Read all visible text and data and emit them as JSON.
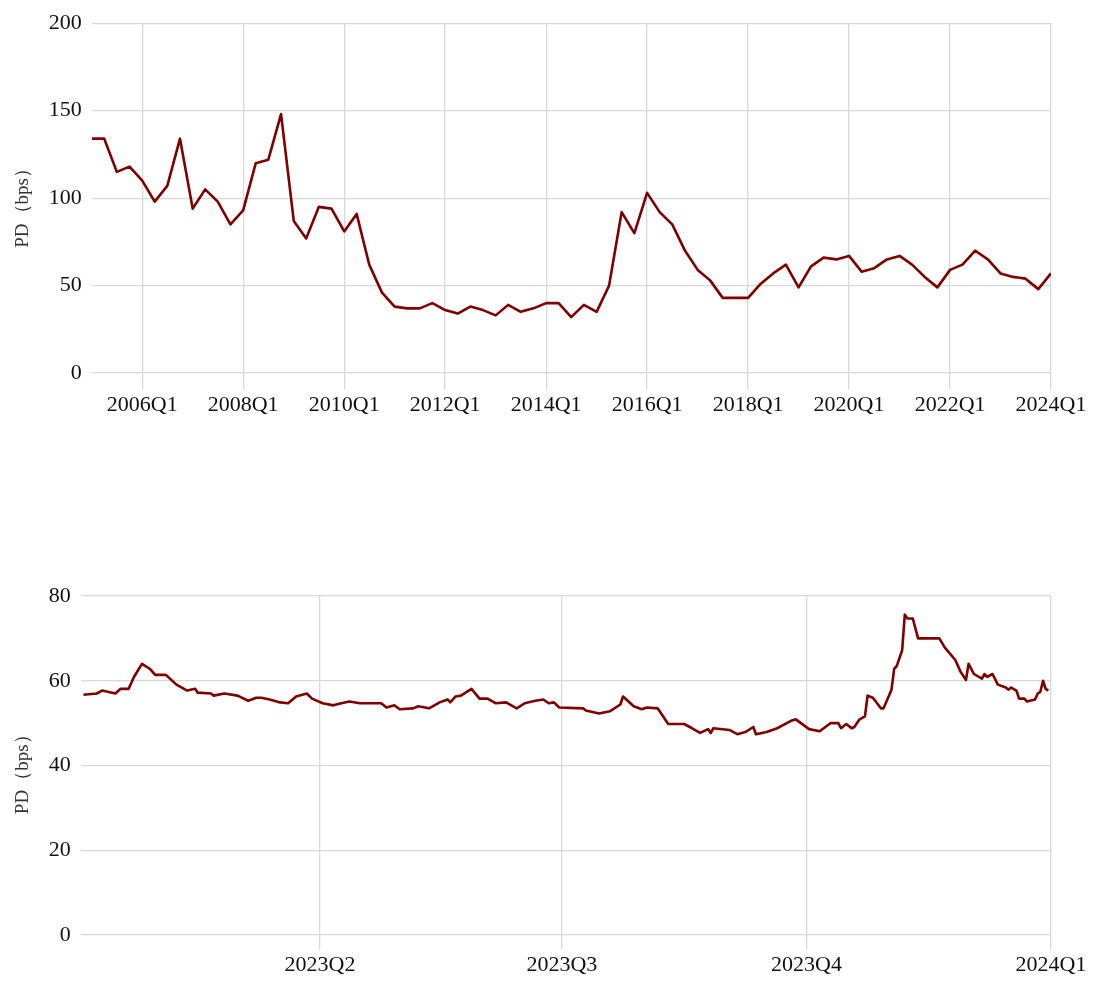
{
  "chart_data": [
    {
      "type": "line",
      "ylabel": "PD（bps）",
      "color": "#800000",
      "marker": "none",
      "grid": true,
      "x": [
        "2005-01-01",
        "2005-04-01",
        "2005-07-01",
        "2005-10-01",
        "2006-01-01",
        "2006-04-01",
        "2006-07-01",
        "2006-10-01",
        "2007-01-01",
        "2007-04-01",
        "2007-07-01",
        "2007-10-01",
        "2008-01-01",
        "2008-04-01",
        "2008-07-01",
        "2008-10-01",
        "2009-01-01",
        "2009-04-01",
        "2009-07-01",
        "2009-10-01",
        "2010-01-01",
        "2010-04-01",
        "2010-07-01",
        "2010-10-01",
        "2011-01-01",
        "2011-04-01",
        "2011-07-01",
        "2011-10-01",
        "2012-01-01",
        "2012-04-01",
        "2012-07-01",
        "2012-10-01",
        "2013-01-01",
        "2013-04-01",
        "2013-07-01",
        "2013-10-01",
        "2014-01-01",
        "2014-04-01",
        "2014-07-01",
        "2014-10-01",
        "2015-01-01",
        "2015-04-01",
        "2015-07-01",
        "2015-10-01",
        "2016-01-01",
        "2016-04-01",
        "2016-07-01",
        "2016-10-01",
        "2017-01-01",
        "2017-04-01",
        "2017-07-01",
        "2017-10-01",
        "2018-01-01",
        "2018-04-01",
        "2018-07-01",
        "2018-10-01",
        "2019-01-01",
        "2019-04-01",
        "2019-07-01",
        "2019-10-01",
        "2020-01-01",
        "2020-04-01",
        "2020-07-01",
        "2020-10-01",
        "2021-01-01",
        "2021-04-01",
        "2021-07-01",
        "2021-10-01",
        "2022-01-01",
        "2022-04-01",
        "2022-07-01",
        "2022-10-01",
        "2023-01-01",
        "2023-04-01",
        "2023-07-01",
        "2023-10-01",
        "2024-01-01"
      ],
      "values": [
        134,
        134,
        115,
        118,
        110,
        98,
        107,
        134,
        94,
        105,
        98,
        85,
        93,
        120,
        122,
        148,
        87,
        77,
        95,
        94,
        81,
        91,
        62,
        46,
        38,
        37,
        37,
        40,
        36,
        34,
        38,
        36,
        33,
        39,
        35,
        37,
        40,
        40,
        32,
        39,
        35,
        50,
        92,
        80,
        103,
        92,
        85,
        70,
        59,
        53,
        43,
        43,
        43,
        51,
        57,
        62,
        49,
        61,
        66,
        65,
        67,
        58,
        60,
        65,
        67,
        62,
        55,
        49,
        59,
        62,
        70,
        65,
        57,
        55,
        54,
        48,
        57
      ],
      "xlim": [
        "2005-01-01",
        "2024-01-01"
      ],
      "ylim": [
        -6,
        200
      ],
      "yticks": [
        0,
        50,
        100,
        150,
        200
      ],
      "xticks": [
        {
          "value": "2006-01-01",
          "label": "2006Q1"
        },
        {
          "value": "2008-01-01",
          "label": "2008Q1"
        },
        {
          "value": "2010-01-01",
          "label": "2010Q1"
        },
        {
          "value": "2012-01-01",
          "label": "2012Q1"
        },
        {
          "value": "2014-01-01",
          "label": "2014Q1"
        },
        {
          "value": "2016-01-01",
          "label": "2016Q1"
        },
        {
          "value": "2018-01-01",
          "label": "2018Q1"
        },
        {
          "value": "2020-01-01",
          "label": "2020Q1"
        },
        {
          "value": "2022-01-01",
          "label": "2022Q1"
        },
        {
          "value": "2024-01-01",
          "label": "2024Q1"
        }
      ]
    },
    {
      "type": "line",
      "ylabel": "PD（bps）",
      "color": "#800000",
      "marker": "none",
      "grid": true,
      "x": [
        "2023-01-02",
        "2023-01-07",
        "2023-01-09",
        "2023-01-14",
        "2023-01-16",
        "2023-01-19",
        "2023-01-21",
        "2023-01-24",
        "2023-01-27",
        "2023-01-29",
        "2023-02-02",
        "2023-02-06",
        "2023-02-10",
        "2023-02-13",
        "2023-02-14",
        "2023-02-19",
        "2023-02-20",
        "2023-02-24",
        "2023-03-01",
        "2023-03-05",
        "2023-03-08",
        "2023-03-10",
        "2023-03-13",
        "2023-03-17",
        "2023-03-20",
        "2023-03-23",
        "2023-03-27",
        "2023-03-29",
        "2023-04-02",
        "2023-04-06",
        "2023-04-09",
        "2023-04-12",
        "2023-04-16",
        "2023-04-24",
        "2023-04-26",
        "2023-04-29",
        "2023-05-01",
        "2023-05-06",
        "2023-05-08",
        "2023-05-12",
        "2023-05-16",
        "2023-05-19",
        "2023-05-20",
        "2023-05-22",
        "2023-05-24",
        "2023-05-28",
        "2023-05-31",
        "2023-06-03",
        "2023-06-06",
        "2023-06-10",
        "2023-06-14",
        "2023-06-17",
        "2023-06-21",
        "2023-06-24",
        "2023-06-26",
        "2023-06-28",
        "2023-06-30",
        "2023-07-09",
        "2023-07-10",
        "2023-07-15",
        "2023-07-19",
        "2023-07-23",
        "2023-07-24",
        "2023-07-28",
        "2023-07-31",
        "2023-08-02",
        "2023-08-06",
        "2023-08-10",
        "2023-08-16",
        "2023-08-19",
        "2023-08-22",
        "2023-08-25",
        "2023-08-26",
        "2023-08-27",
        "2023-09-02",
        "2023-09-05",
        "2023-09-08",
        "2023-09-11",
        "2023-09-12",
        "2023-09-16",
        "2023-09-20",
        "2023-09-22",
        "2023-09-25",
        "2023-09-27",
        "2023-10-02",
        "2023-10-06",
        "2023-10-10",
        "2023-10-13",
        "2023-10-14",
        "2023-10-16",
        "2023-10-18",
        "2023-10-19",
        "2023-10-21",
        "2023-10-23",
        "2023-10-24",
        "2023-10-26",
        "2023-10-29",
        "2023-10-30",
        "2023-11-02",
        "2023-11-03",
        "2023-11-04",
        "2023-11-06",
        "2023-11-07",
        "2023-11-08",
        "2023-11-10",
        "2023-11-12",
        "2023-11-20",
        "2023-11-22",
        "2023-11-26",
        "2023-11-28",
        "2023-11-30",
        "2023-12-01",
        "2023-12-03",
        "2023-12-06",
        "2023-12-07",
        "2023-12-08",
        "2023-12-10",
        "2023-12-12",
        "2023-12-15",
        "2023-12-16",
        "2023-12-17",
        "2023-12-19",
        "2023-12-20",
        "2023-12-22",
        "2023-12-23",
        "2023-12-26",
        "2023-12-27",
        "2023-12-28",
        "2023-12-29",
        "2023-12-30",
        "2023-12-31"
      ],
      "values": [
        56.7,
        57,
        57.7,
        57,
        58.1,
        58.1,
        60.9,
        64,
        62.8,
        61.4,
        61.4,
        59.1,
        57.7,
        58.1,
        57.2,
        57,
        56.5,
        57,
        56.5,
        55.3,
        56,
        56,
        55.6,
        54.9,
        54.7,
        56.3,
        57,
        55.8,
        54.7,
        54.2,
        54.7,
        55.1,
        54.7,
        54.7,
        53.7,
        54.2,
        53.3,
        53.5,
        54,
        53.5,
        54.9,
        55.6,
        54.9,
        56.3,
        56.5,
        58.1,
        55.8,
        55.8,
        54.7,
        54.9,
        53.5,
        54.7,
        55.3,
        55.6,
        54.7,
        54.9,
        53.7,
        53.5,
        53,
        52.3,
        52.8,
        54.4,
        56.3,
        54,
        53.3,
        53.7,
        53.5,
        49.8,
        49.8,
        48.8,
        47.7,
        48.6,
        47.7,
        48.8,
        48.4,
        47.4,
        47.9,
        49.1,
        47.4,
        47.9,
        48.8,
        49.5,
        50.5,
        50.9,
        48.6,
        48.1,
        50,
        50,
        48.8,
        49.8,
        48.8,
        49.1,
        50.9,
        51.6,
        56.5,
        56,
        53.5,
        53.5,
        57.9,
        62.8,
        63.5,
        67.2,
        75.6,
        74.7,
        74.7,
        70,
        70,
        67.9,
        64.9,
        62.1,
        60.2,
        64,
        61.6,
        60.5,
        61.6,
        60.9,
        61.6,
        59.1,
        58.4,
        57.9,
        58.4,
        57.7,
        55.8,
        55.8,
        55.1,
        55.6,
        57,
        57.4,
        60,
        58.1,
        57.7
      ],
      "xlim": [
        "2023-01-01",
        "2024-01-01"
      ],
      "ylim": [
        -2,
        80
      ],
      "yticks": [
        0,
        20,
        40,
        60,
        80
      ],
      "xticks": [
        {
          "value": "2023-04-01",
          "label": "2023Q2"
        },
        {
          "value": "2023-07-01",
          "label": "2023Q3"
        },
        {
          "value": "2023-10-01",
          "label": "2023Q4"
        },
        {
          "value": "2024-01-01",
          "label": "2024Q1"
        }
      ]
    }
  ]
}
